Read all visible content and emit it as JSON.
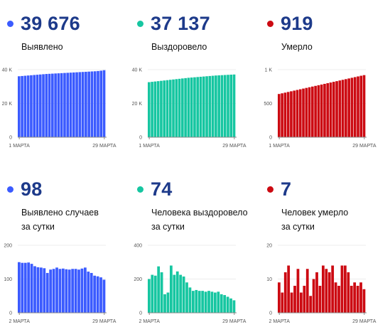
{
  "panels": [
    {
      "value": "39 676",
      "label": [
        "Выявлено"
      ],
      "color": "#3b5bff"
    },
    {
      "value": "37 137",
      "label": [
        "Выздоровело"
      ],
      "color": "#16c6a1"
    },
    {
      "value": "919",
      "label": [
        "Умерло"
      ],
      "color": "#cc0a12"
    },
    {
      "value": "98",
      "label": [
        "Выявлено случаев",
        "за сутки"
      ],
      "color": "#3b5bff"
    },
    {
      "value": "74",
      "label": [
        "Человека выздоровело",
        "за сутки"
      ],
      "color": "#16c6a1"
    },
    {
      "value": "7",
      "label": [
        "Человек умерло",
        "за сутки"
      ],
      "color": "#cc0a12"
    }
  ],
  "chart_data": [
    {
      "type": "bar",
      "title": "Выявлено",
      "ylim": [
        0,
        40000
      ],
      "yticks": [
        {
          "value": 0,
          "label": "0"
        },
        {
          "value": 20000,
          "label": "20 K"
        },
        {
          "value": 40000,
          "label": "40 K"
        }
      ],
      "xticks": [
        {
          "index": 0,
          "label": "1 МАРТА"
        },
        {
          "index": 28,
          "label": "29 МАРТА"
        }
      ],
      "color": "#3b5bff",
      "values": [
        36100,
        36250,
        36400,
        36550,
        36700,
        36850,
        37000,
        37150,
        37300,
        37450,
        37550,
        37650,
        37750,
        37850,
        37950,
        38050,
        38150,
        38250,
        38350,
        38450,
        38550,
        38650,
        38750,
        38850,
        38950,
        39050,
        39200,
        39400,
        39676
      ]
    },
    {
      "type": "bar",
      "title": "Выздоровело",
      "ylim": [
        0,
        40000
      ],
      "yticks": [
        {
          "value": 0,
          "label": "0"
        },
        {
          "value": 20000,
          "label": "20 K"
        },
        {
          "value": 40000,
          "label": "40 K"
        }
      ],
      "xticks": [
        {
          "index": 0,
          "label": "1 МАРТА"
        },
        {
          "index": 28,
          "label": "29 МАРТА"
        }
      ],
      "color": "#16c6a1",
      "values": [
        32600,
        32800,
        33000,
        33200,
        33400,
        33600,
        33800,
        34000,
        34200,
        34400,
        34600,
        34800,
        35000,
        35200,
        35350,
        35500,
        35650,
        35800,
        35950,
        36100,
        36250,
        36400,
        36550,
        36650,
        36750,
        36850,
        36950,
        37050,
        37137
      ]
    },
    {
      "type": "bar",
      "title": "Умерло",
      "ylim": [
        0,
        1000
      ],
      "yticks": [
        {
          "value": 0,
          "label": "0"
        },
        {
          "value": 500,
          "label": "500"
        },
        {
          "value": 1000,
          "label": "1 K"
        }
      ],
      "xticks": [
        {
          "index": 0,
          "label": "1 МАРТА"
        },
        {
          "index": 28,
          "label": "29 МАРТА"
        }
      ],
      "color": "#cc0a12",
      "values": [
        640,
        650,
        660,
        670,
        680,
        690,
        700,
        710,
        720,
        730,
        740,
        750,
        760,
        770,
        780,
        790,
        800,
        810,
        820,
        830,
        840,
        850,
        860,
        870,
        880,
        890,
        900,
        910,
        919
      ]
    },
    {
      "type": "bar",
      "title": "Выявлено случаев за сутки",
      "ylim": [
        0,
        200
      ],
      "yticks": [
        {
          "value": 0,
          "label": "0"
        },
        {
          "value": 100,
          "label": "100"
        },
        {
          "value": 200,
          "label": "200"
        }
      ],
      "xticks": [
        {
          "index": 0,
          "label": "2 МАРТА"
        },
        {
          "index": 27,
          "label": "29 МАРТА"
        }
      ],
      "color": "#3b5bff",
      "values": [
        150,
        148,
        148,
        149,
        145,
        138,
        135,
        134,
        132,
        118,
        128,
        130,
        134,
        130,
        131,
        129,
        128,
        130,
        130,
        128,
        131,
        134,
        122,
        118,
        110,
        108,
        105,
        98
      ]
    },
    {
      "type": "bar",
      "title": "Человека выздоровело за сутки",
      "ylim": [
        0,
        400
      ],
      "yticks": [
        {
          "value": 0,
          "label": "0"
        },
        {
          "value": 200,
          "label": "200"
        },
        {
          "value": 400,
          "label": "400"
        }
      ],
      "xticks": [
        {
          "index": 0,
          "label": "2 МАРТА"
        },
        {
          "index": 27,
          "label": "29 МАРТА"
        }
      ],
      "color": "#16c6a1",
      "values": [
        200,
        225,
        220,
        275,
        240,
        110,
        120,
        280,
        225,
        245,
        225,
        215,
        180,
        150,
        130,
        135,
        130,
        130,
        125,
        130,
        125,
        120,
        125,
        110,
        105,
        95,
        85,
        74
      ]
    },
    {
      "type": "bar",
      "title": "Человек умерло за сутки",
      "ylim": [
        0,
        20
      ],
      "yticks": [
        {
          "value": 0,
          "label": "0"
        },
        {
          "value": 10,
          "label": "10"
        },
        {
          "value": 20,
          "label": "20"
        }
      ],
      "xticks": [
        {
          "index": 0,
          "label": "2 МАРТА"
        },
        {
          "index": 27,
          "label": "29 МАРТА"
        }
      ],
      "color": "#cc0a12",
      "values": [
        9,
        6,
        12,
        14,
        6,
        8,
        13,
        6,
        8,
        13,
        5,
        10,
        12,
        8,
        14,
        13,
        12,
        14,
        9,
        8,
        14,
        14,
        12,
        8,
        9,
        8,
        9,
        7
      ]
    }
  ]
}
